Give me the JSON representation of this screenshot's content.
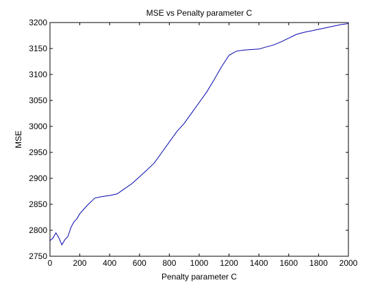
{
  "chart_data": {
    "type": "line",
    "title": "MSE vs Penalty parameter C",
    "xlabel": "Penalty parameter C",
    "ylabel": "MSE",
    "xlim": [
      0,
      2000
    ],
    "ylim": [
      2750,
      3200
    ],
    "xticks": [
      0,
      200,
      400,
      600,
      800,
      1000,
      1200,
      1400,
      1600,
      1800,
      2000
    ],
    "yticks": [
      2750,
      2800,
      2850,
      2900,
      2950,
      3000,
      3050,
      3100,
      3150,
      3200
    ],
    "grid": false,
    "line_color": "#0000ad",
    "series": [
      {
        "x": [
          0,
          20,
          40,
          60,
          80,
          100,
          120,
          140,
          160,
          180,
          200,
          250,
          300,
          350,
          400,
          450,
          500,
          550,
          600,
          650,
          700,
          750,
          800,
          850,
          900,
          950,
          1000,
          1050,
          1100,
          1150,
          1200,
          1250,
          1300,
          1350,
          1400,
          1450,
          1500,
          1550,
          1600,
          1650,
          1700,
          1750,
          1800,
          1850,
          1900,
          1950,
          2000
        ],
        "y": [
          2780,
          2785,
          2795,
          2785,
          2772,
          2782,
          2788,
          2805,
          2816,
          2822,
          2832,
          2848,
          2862,
          2865,
          2867,
          2870,
          2880,
          2890,
          2903,
          2916,
          2930,
          2950,
          2970,
          2990,
          3006,
          3026,
          3046,
          3066,
          3090,
          3115,
          3137,
          3145,
          3147,
          3148,
          3149,
          3153,
          3157,
          3163,
          3170,
          3177,
          3181,
          3184,
          3187,
          3190,
          3193,
          3196,
          3198
        ]
      }
    ]
  }
}
